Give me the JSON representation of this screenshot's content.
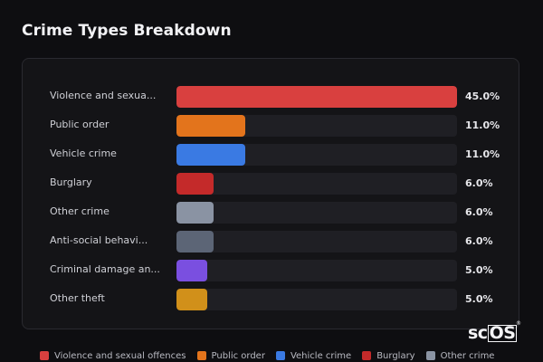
{
  "title": "Crime Types Breakdown",
  "logo": {
    "boxed_part": "OS",
    "prefix": "sc",
    "reg": "®"
  },
  "chart_data": {
    "type": "bar",
    "orientation": "horizontal",
    "xlim": [
      0,
      45
    ],
    "grid": false,
    "legend_position": "bottom",
    "categories": [
      "Violence and sexual offences",
      "Public order",
      "Vehicle crime",
      "Burglary",
      "Other crime",
      "Anti-social behaviour",
      "Criminal damage and arson",
      "Other theft"
    ],
    "display_labels": [
      "Violence and sexua...",
      "Public order",
      "Vehicle crime",
      "Burglary",
      "Other crime",
      "Anti-social behavi...",
      "Criminal damage an...",
      "Other theft"
    ],
    "values": [
      45.0,
      11.0,
      11.0,
      6.0,
      6.0,
      6.0,
      5.0,
      5.0
    ],
    "value_labels": [
      "45.0%",
      "11.0%",
      "11.0%",
      "6.0%",
      "6.0%",
      "6.0%",
      "5.0%",
      "5.0%"
    ],
    "colors": [
      "#d9403f",
      "#e3741c",
      "#3a7ae3",
      "#c42a2a",
      "#8a93a3",
      "#5c6576",
      "#7a4fe0",
      "#d1901a"
    ]
  },
  "legend": [
    {
      "label": "Violence and sexual offences",
      "color": "#d9403f"
    },
    {
      "label": "Public order",
      "color": "#e3741c"
    },
    {
      "label": "Vehicle crime",
      "color": "#3a7ae3"
    },
    {
      "label": "Burglary",
      "color": "#c42a2a"
    },
    {
      "label": "Other crime",
      "color": "#8a93a3"
    }
  ]
}
